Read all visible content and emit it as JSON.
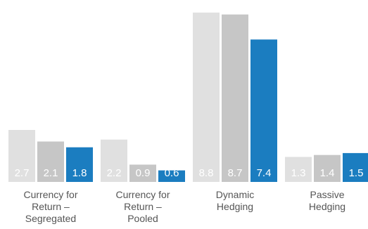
{
  "colors": {
    "series_1": "#e0e0e0",
    "series_2": "#c6c6c6",
    "series_3": "#1b7dc0",
    "value_label_light": "#ffffff",
    "category_label": "#555555"
  },
  "chart_data": {
    "type": "bar",
    "title": "",
    "xlabel": "",
    "ylabel": "",
    "grid": false,
    "legend": "none",
    "y_axis_visible": false,
    "categories": [
      [
        "Currency for",
        "Return –",
        "Segregated"
      ],
      [
        "Currency for",
        "Return –",
        "Pooled"
      ],
      [
        "Dynamic",
        "Hedging"
      ],
      [
        "Passive",
        "Hedging"
      ]
    ],
    "series": [
      {
        "values": [
          2.7,
          2.2,
          8.8,
          1.3
        ],
        "labels": [
          "2.7",
          "2.2",
          "8.8",
          "1.3"
        ]
      },
      {
        "values": [
          2.1,
          0.9,
          8.7,
          1.4
        ],
        "labels": [
          "2.1",
          "0.9",
          "8.7",
          "1.4"
        ]
      },
      {
        "values": [
          1.8,
          0.6,
          7.4,
          1.5
        ],
        "labels": [
          "1.8",
          "0.6",
          "7.4",
          "1.5"
        ]
      }
    ]
  }
}
